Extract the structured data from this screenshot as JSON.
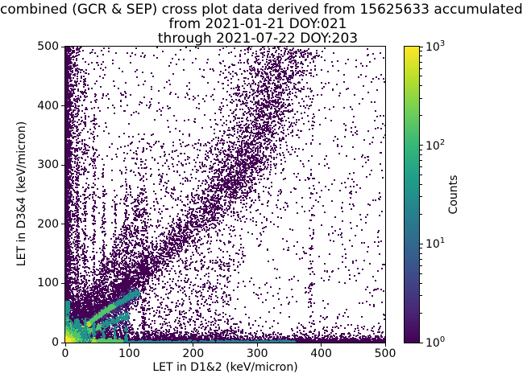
{
  "figure": {
    "background": "#ffffff"
  },
  "chart_data": {
    "type": "heatmap",
    "title_lines": [
      "combined (GCR & SEP) cross plot data derived from 15625633 accumulated",
      "from 2021-01-21 DOY:021",
      "through 2021-07-22 DOY:203"
    ],
    "xlabel": "LET in D1&2 (keV/micron)",
    "ylabel": "LET in D3&4 (keV/micron)",
    "xlim": [
      0,
      500
    ],
    "ylim": [
      0,
      500
    ],
    "xticks": [
      0,
      100,
      200,
      300,
      400,
      500
    ],
    "yticks": [
      0,
      100,
      200,
      300,
      400,
      500
    ],
    "grid": false,
    "accumulated_events": 15625633,
    "colorbar": {
      "label": "Counts",
      "scale": "log",
      "base": 10,
      "tick_exponents": [
        0,
        1,
        2,
        3
      ],
      "range": [
        1,
        1000
      ],
      "colormap": "viridis",
      "position": "right"
    },
    "colormap_stops": [
      "#440154",
      "#482878",
      "#3e4a89",
      "#31688e",
      "#26828e",
      "#1f9e89",
      "#35b779",
      "#6ece58",
      "#b5de2b",
      "#fde725"
    ],
    "palette": [
      "#440154",
      "#46327e",
      "#277f8e",
      "#21918c",
      "#52c569",
      "#addc30",
      "#fde725"
    ],
    "point_size": 2,
    "seed": 42,
    "features": [
      {
        "kind": "uniform",
        "x": [
          0,
          500
        ],
        "y": [
          0,
          500
        ],
        "n": 1500,
        "c": 0
      },
      {
        "kind": "uniform",
        "x": [
          0,
          260
        ],
        "y": [
          0,
          140
        ],
        "n": 900,
        "c": 0
      },
      {
        "kind": "uniform",
        "x": [
          100,
          280
        ],
        "y": [
          120,
          340
        ],
        "n": 500,
        "c": 0
      },
      {
        "kind": "expx",
        "x0": 0,
        "scale": 2.5,
        "y": [
          0,
          500
        ],
        "n": 2300,
        "c": 0
      },
      {
        "kind": "expx",
        "x0": 0,
        "scale": 11,
        "y": [
          0,
          500
        ],
        "n": 1300,
        "c": 0
      },
      {
        "kind": "expy",
        "y0": 0,
        "scale": 2,
        "x": [
          0,
          500
        ],
        "n": 2400,
        "c": 0
      },
      {
        "kind": "expy",
        "y0": 0,
        "scale": 7.5,
        "x": [
          0,
          280
        ],
        "n": 1500,
        "c": 0
      },
      {
        "kind": "expy",
        "y0": 0,
        "scale": 6,
        "x": [
          280,
          500
        ],
        "n": 650,
        "c": 0
      },
      {
        "kind": "blob",
        "cx": 10,
        "cy": 10,
        "sx": 30,
        "sy": 30,
        "n": 2800,
        "c": 0,
        "clip": true
      },
      {
        "kind": "wedge",
        "x": [
          0,
          130
        ],
        "slope": [
          0.7,
          2.2
        ],
        "n": 1400,
        "c": 0
      },
      {
        "kind": "ridge",
        "pts": [
          [
            20,
            20
          ],
          [
            150,
            150
          ],
          [
            245,
            248
          ],
          [
            300,
            330
          ],
          [
            345,
            470
          ],
          [
            352,
            500
          ]
        ],
        "sw": [
          7,
          26
        ],
        "n": 3000,
        "c": 0
      },
      {
        "kind": "blob",
        "cx": 300,
        "cy": 420,
        "sx": 30,
        "sy": 55,
        "n": 450,
        "c": 0
      },
      {
        "kind": "blob",
        "cx": 265,
        "cy": 295,
        "sx": 28,
        "sy": 40,
        "n": 400,
        "c": 0
      },
      {
        "kind": "streaks",
        "xs": [
          19,
          31,
          45,
          60,
          78,
          95,
          122
        ],
        "ymax": [
          500,
          460,
          420,
          310,
          260,
          320,
          200
        ],
        "n": [
          300,
          280,
          250,
          210,
          190,
          230,
          120
        ],
        "sx": 1.3,
        "pow": 2.2,
        "c": 0
      },
      {
        "kind": "streaks",
        "xs": [
          385
        ],
        "ymax": [
          500
        ],
        "n": [
          95
        ],
        "sx": 2.5,
        "pow": 1,
        "c": 0
      },
      {
        "kind": "ridge",
        "pts": [
          [
            0,
            0
          ],
          [
            60,
            52
          ],
          [
            115,
            86
          ]
        ],
        "sw": [
          6,
          10
        ],
        "n": 520,
        "c": 0
      },
      {
        "kind": "ridge",
        "pts": [
          [
            0,
            0
          ],
          [
            60,
            52
          ],
          [
            115,
            86
          ]
        ],
        "sw": [
          3,
          6
        ],
        "n": 700,
        "c": 1
      },
      {
        "kind": "ridge",
        "pts": [
          [
            0,
            0
          ],
          [
            55,
            28
          ],
          [
            100,
            46
          ]
        ],
        "sw": [
          4,
          7
        ],
        "n": 280,
        "c": 1
      },
      {
        "kind": "ridge",
        "pts": [
          [
            0,
            0
          ],
          [
            55,
            28
          ],
          [
            100,
            46
          ]
        ],
        "sw": [
          1.5,
          3
        ],
        "n": 380,
        "grad": [
          [
            0,
            5
          ],
          [
            0.25,
            4
          ],
          [
            0.6,
            3
          ],
          [
            1,
            2
          ]
        ]
      },
      {
        "kind": "ridge",
        "pts": [
          [
            0,
            0
          ],
          [
            60,
            52
          ],
          [
            115,
            86
          ]
        ],
        "sw": [
          1.2,
          2.2
        ],
        "n": 1000,
        "grad": [
          [
            0,
            6
          ],
          [
            0.12,
            5
          ],
          [
            0.35,
            4
          ],
          [
            0.7,
            3
          ],
          [
            1,
            2
          ]
        ]
      },
      {
        "kind": "streaks",
        "xs": [
          19,
          31,
          45,
          60,
          78,
          95
        ],
        "ymax": [
          40,
          38,
          34,
          30,
          28,
          26
        ],
        "n": [
          90,
          80,
          70,
          60,
          55,
          50
        ],
        "sx": 1.0,
        "pow": 1.3,
        "c": 3
      },
      {
        "kind": "ridge",
        "pts": [
          [
            90,
            1
          ],
          [
            360,
            1
          ]
        ],
        "sw": [
          1,
          1.5
        ],
        "n": 700,
        "c": 2
      },
      {
        "kind": "ridge",
        "pts": [
          [
            0,
            1
          ],
          [
            30,
            1
          ],
          [
            90,
            1.5
          ]
        ],
        "sw": [
          1.5,
          2.5
        ],
        "n": 800,
        "grad": [
          [
            0,
            6
          ],
          [
            0.25,
            5
          ],
          [
            0.55,
            4
          ],
          [
            1,
            3
          ]
        ]
      },
      {
        "kind": "ridge",
        "pts": [
          [
            1,
            0
          ],
          [
            1,
            30
          ],
          [
            2,
            70
          ]
        ],
        "sw": [
          1.5,
          2.5
        ],
        "n": 500,
        "grad": [
          [
            0,
            6
          ],
          [
            0.2,
            4
          ],
          [
            0.6,
            3
          ],
          [
            1,
            2
          ]
        ]
      },
      {
        "kind": "blob",
        "cx": 6,
        "cy": 6,
        "sx": 13,
        "sy": 13,
        "n": 1500,
        "c": 3,
        "clip": true
      },
      {
        "kind": "blob",
        "cx": 4,
        "cy": 4,
        "sx": 8,
        "sy": 8,
        "n": 1200,
        "c": 4,
        "clip": true
      },
      {
        "kind": "blob",
        "cx": 2.5,
        "cy": 2.5,
        "sx": 4.5,
        "sy": 4.5,
        "n": 900,
        "c": 5,
        "clip": true
      },
      {
        "kind": "blob",
        "cx": 1.5,
        "cy": 1.5,
        "sx": 2.5,
        "sy": 2.5,
        "n": 700,
        "c": 6,
        "clip": true
      }
    ]
  }
}
